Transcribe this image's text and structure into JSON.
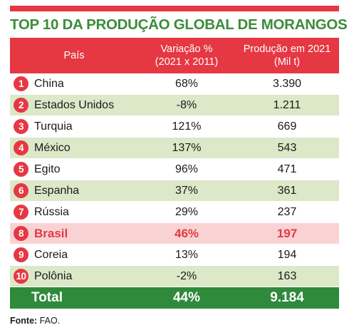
{
  "title": "TOP 10 DA PRODUÇÃO GLOBAL DE MORANGOS",
  "header": {
    "col_country": "País",
    "col_variation_line1": "Variação %",
    "col_variation_line2": "(2021 x 2011)",
    "col_production_line1": "Produção em 2021",
    "col_production_line2": "(Mil t)"
  },
  "rows": [
    {
      "rank": "1",
      "country": "China",
      "variation": "68%",
      "production": "3.390"
    },
    {
      "rank": "2",
      "country": "Estados Unidos",
      "variation": "-8%",
      "production": "1.211"
    },
    {
      "rank": "3",
      "country": "Turquia",
      "variation": "121%",
      "production": "669"
    },
    {
      "rank": "4",
      "country": "México",
      "variation": "137%",
      "production": "543"
    },
    {
      "rank": "5",
      "country": "Egito",
      "variation": "96%",
      "production": "471"
    },
    {
      "rank": "6",
      "country": "Espanha",
      "variation": "37%",
      "production": "361"
    },
    {
      "rank": "7",
      "country": "Rússia",
      "variation": "29%",
      "production": "237"
    },
    {
      "rank": "8",
      "country": "Brasil",
      "variation": "46%",
      "production": "197"
    },
    {
      "rank": "9",
      "country": "Coreia",
      "variation": "13%",
      "production": "194"
    },
    {
      "rank": "10",
      "country": "Polônia",
      "variation": "-2%",
      "production": "163"
    }
  ],
  "total": {
    "label": "Total",
    "variation": "44%",
    "production": "9.184"
  },
  "source": {
    "label": "Fonte:",
    "value": "FAO."
  },
  "colors": {
    "accent_red": "#e53843",
    "title_green": "#3b8c3a",
    "total_green": "#2f8a3c",
    "stripe_green": "#dce8c8",
    "highlight_pink": "#f9d3d3"
  }
}
